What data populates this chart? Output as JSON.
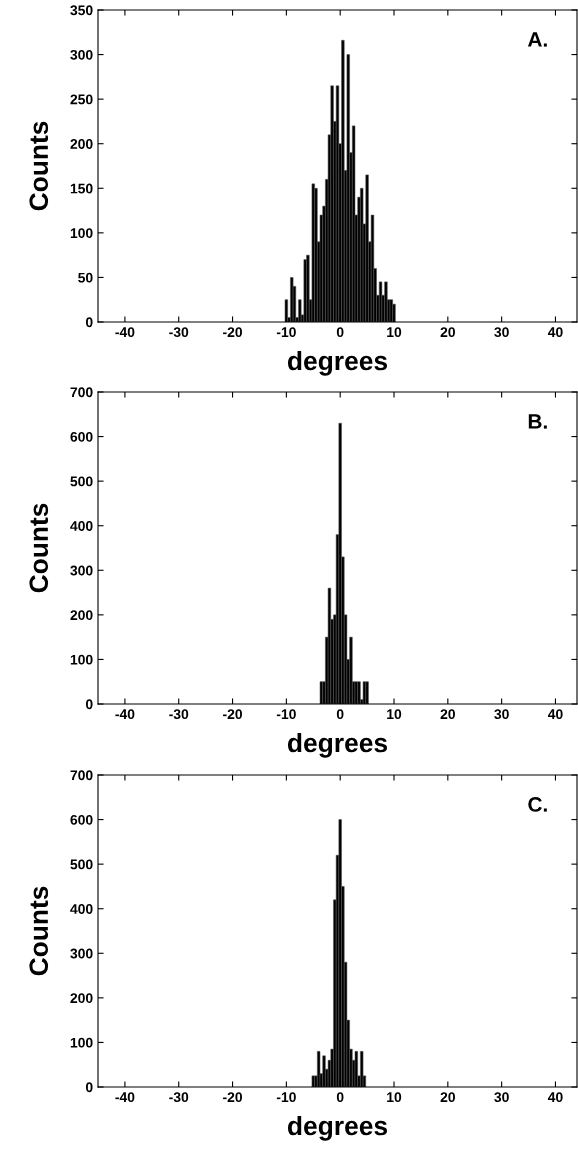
{
  "chart_data": [
    {
      "type": "histogram",
      "xlabel": "degrees",
      "ylabel": "Counts",
      "annotations": [
        "A."
      ],
      "color": "#000000",
      "xlim": [
        -45,
        44
      ],
      "xticks": [
        -40,
        -30,
        -20,
        -10,
        0,
        10,
        20,
        30,
        40
      ],
      "ylim": [
        0,
        350
      ],
      "yticks": [
        0,
        50,
        100,
        150,
        200,
        250,
        300,
        350
      ],
      "grid": false,
      "bins": [
        -10.25,
        -9.75,
        -9.25,
        -8.75,
        -8.25,
        -7.75,
        -7.25,
        -6.75,
        -6.25,
        -5.75,
        -5.25,
        -4.75,
        -4.25,
        -3.75,
        -3.25,
        -2.75,
        -2.25,
        -1.75,
        -1.25,
        -0.75,
        -0.25,
        0.25,
        0.75,
        1.25,
        1.75,
        2.25,
        2.75,
        3.25,
        3.75,
        4.25,
        4.75,
        5.25,
        5.75,
        6.25,
        6.75,
        7.25,
        7.75,
        8.25,
        8.75,
        9.25,
        9.75,
        10.25
      ],
      "values": [
        25,
        5,
        50,
        40,
        5,
        25,
        8,
        70,
        75,
        25,
        155,
        150,
        90,
        120,
        130,
        160,
        210,
        265,
        225,
        265,
        200,
        316,
        170,
        300,
        190,
        220,
        120,
        140,
        150,
        110,
        165,
        90,
        120,
        60,
        30,
        45,
        30,
        45,
        25,
        25,
        20
      ]
    },
    {
      "type": "histogram",
      "xlabel": "degrees",
      "ylabel": "Counts",
      "annotations": [
        "B."
      ],
      "color": "#000000",
      "xlim": [
        -45,
        44
      ],
      "xticks": [
        -40,
        -30,
        -20,
        -10,
        0,
        10,
        20,
        30,
        40
      ],
      "ylim": [
        0,
        700
      ],
      "yticks": [
        0,
        100,
        200,
        300,
        400,
        500,
        600,
        700
      ],
      "grid": false,
      "bins": [
        -3.75,
        -3.25,
        -2.75,
        -2.25,
        -1.75,
        -1.25,
        -0.75,
        -0.25,
        0.25,
        0.75,
        1.25,
        1.75,
        2.25,
        2.75,
        3.25,
        3.75,
        4.25,
        4.75,
        5.25
      ],
      "values": [
        50,
        50,
        150,
        260,
        190,
        200,
        380,
        630,
        330,
        200,
        100,
        150,
        50,
        50,
        50,
        10,
        50,
        50
      ]
    },
    {
      "type": "histogram",
      "xlabel": "degrees",
      "ylabel": "Counts",
      "annotations": [
        "C."
      ],
      "color": "#000000",
      "xlim": [
        -45,
        44
      ],
      "xticks": [
        -40,
        -30,
        -20,
        -10,
        0,
        10,
        20,
        30,
        40
      ],
      "ylim": [
        0,
        700
      ],
      "yticks": [
        0,
        100,
        200,
        300,
        400,
        500,
        600,
        700
      ],
      "grid": false,
      "bins": [
        -5.25,
        -4.75,
        -4.25,
        -3.75,
        -3.25,
        -2.75,
        -2.25,
        -1.75,
        -1.25,
        -0.75,
        -0.25,
        0.25,
        0.75,
        1.25,
        1.75,
        2.25,
        2.75,
        3.25,
        3.75,
        4.25,
        4.75
      ],
      "values": [
        25,
        25,
        80,
        30,
        70,
        40,
        60,
        85,
        420,
        520,
        600,
        450,
        280,
        150,
        85,
        60,
        80,
        25,
        80,
        25
      ]
    }
  ]
}
